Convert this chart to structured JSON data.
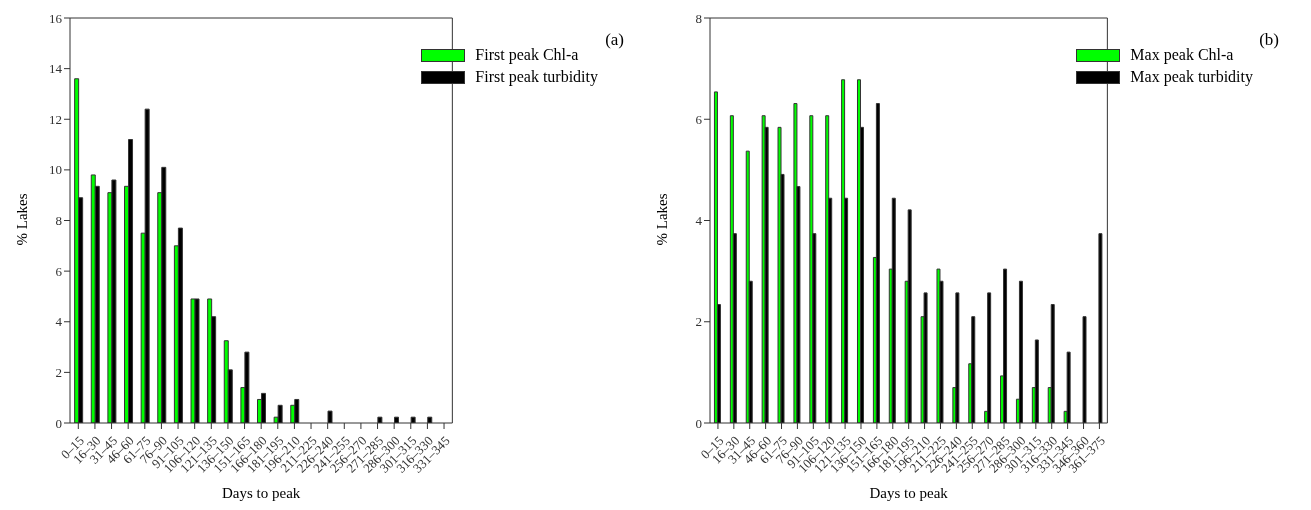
{
  "chart_data": [
    {
      "type": "bar",
      "xlabel": "Days to peak",
      "ylabel": "% Lakes",
      "categories": [
        "0–15",
        "16–30",
        "31–45",
        "46–60",
        "61–75",
        "76–90",
        "91–105",
        "106–120",
        "121–135",
        "136–150",
        "151–165",
        "166–180",
        "181–195",
        "196–210",
        "211–225",
        "226–240",
        "241–255",
        "256–270",
        "271–285",
        "286–300",
        "301–315",
        "316–330",
        "331–345"
      ],
      "series": [
        {
          "name": "First peak Chl-a",
          "color": "#00ff00",
          "values": [
            13.6,
            9.8,
            9.1,
            9.35,
            7.5,
            9.1,
            7.0,
            4.9,
            4.9,
            3.25,
            1.4,
            0.93,
            0.23,
            0.7,
            0,
            0,
            0,
            0,
            0,
            0,
            0,
            0,
            0
          ]
        },
        {
          "name": "First peak turbidity",
          "color": "#000000",
          "values": [
            8.9,
            9.35,
            9.6,
            11.2,
            12.4,
            10.1,
            7.7,
            4.9,
            4.2,
            2.1,
            2.8,
            1.17,
            0.7,
            0.93,
            0,
            0.47,
            0,
            0,
            0.23,
            0.23,
            0.23,
            0.23,
            0
          ]
        }
      ],
      "ylim": [
        0,
        16
      ],
      "yticks": [
        0,
        2,
        4,
        6,
        8,
        10,
        12,
        14,
        16
      ],
      "grid": false,
      "legend": "top right",
      "annotations": [
        "(a)"
      ]
    },
    {
      "type": "bar",
      "xlabel": "Days to peak",
      "ylabel": "% Lakes",
      "categories": [
        "0–15",
        "16–30",
        "31–45",
        "46–60",
        "61–75",
        "76–90",
        "91–105",
        "106–120",
        "121–135",
        "136–150",
        "151–165",
        "166–180",
        "181–195",
        "196–210",
        "211–225",
        "226–240",
        "241–255",
        "256–270",
        "271–285",
        "286–300",
        "301–315",
        "316–330",
        "331–345",
        "346–360",
        "361–375"
      ],
      "series": [
        {
          "name": "Max peak Chl-a",
          "color": "#00ff00",
          "values": [
            6.54,
            6.07,
            5.37,
            6.07,
            5.84,
            6.31,
            6.07,
            6.07,
            6.78,
            6.78,
            3.27,
            3.04,
            2.8,
            2.1,
            3.04,
            0.7,
            1.17,
            0.23,
            0.93,
            0.47,
            0.7,
            0.7,
            0.23,
            0,
            0
          ]
        },
        {
          "name": "Max peak turbidity",
          "color": "#000000",
          "values": [
            2.34,
            3.74,
            2.8,
            5.84,
            4.91,
            4.67,
            3.74,
            4.44,
            4.44,
            5.84,
            6.31,
            4.44,
            4.21,
            2.57,
            2.8,
            2.57,
            2.1,
            2.57,
            3.04,
            2.8,
            1.64,
            2.34,
            1.4,
            2.1,
            3.74
          ]
        }
      ],
      "ylim": [
        0,
        8
      ],
      "yticks": [
        0,
        2,
        4,
        6,
        8
      ],
      "grid": false,
      "legend": "top right",
      "annotations": [
        "(b)"
      ]
    }
  ]
}
